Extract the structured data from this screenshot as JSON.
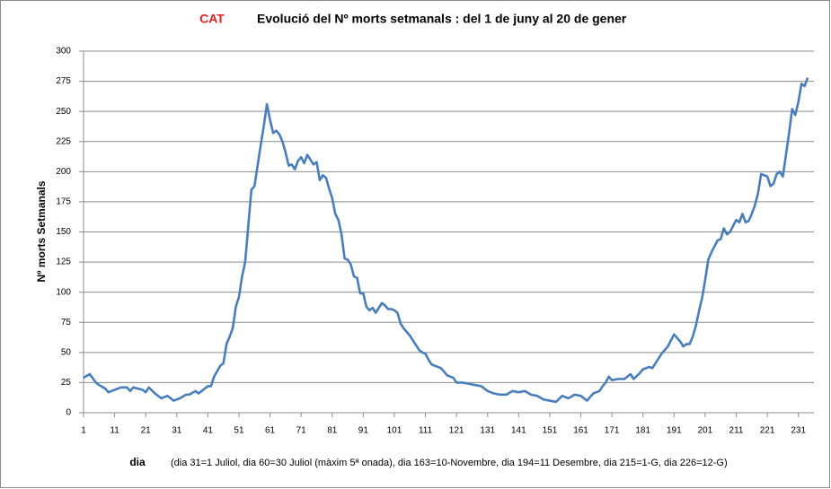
{
  "chart_data": {
    "type": "line",
    "title": "CAT",
    "subtitle": "Evolució  del  Nº morts setmanals  :  del  1 de juny  al  20 de gener",
    "y_label": "Nº morts Setmanals",
    "x_label": "dia",
    "annotation": "(dia 31=1 Juliol,  dia 60=30 Juliol (màxim 5ª onada),  dia 163=10-Novembre,  dia 194=11 Desembre,  dia 215=1-G,  dia 226=12-G)",
    "color": "#4a7ebb",
    "grid": true,
    "xlim": [
      1,
      236
    ],
    "xticks": [
      1,
      11,
      21,
      31,
      41,
      51,
      61,
      71,
      81,
      91,
      101,
      111,
      121,
      131,
      141,
      151,
      161,
      171,
      181,
      191,
      201,
      211,
      221,
      231
    ],
    "ylim": [
      0,
      300
    ],
    "yticks": [
      0,
      25,
      50,
      75,
      100,
      125,
      150,
      175,
      200,
      225,
      250,
      275,
      300
    ],
    "x": [
      1,
      3,
      5,
      6,
      8,
      9,
      11,
      13,
      15,
      16,
      17,
      20,
      21,
      22,
      24,
      26,
      28,
      30,
      32,
      34,
      35,
      37,
      38,
      40,
      41,
      42,
      43,
      45,
      46,
      47,
      48,
      49,
      50,
      51,
      52,
      53,
      54,
      55,
      56,
      57,
      58,
      59,
      60,
      61,
      62,
      63,
      64,
      65,
      66,
      67,
      68,
      69,
      70,
      71,
      72,
      73,
      74,
      75,
      76,
      77,
      78,
      79,
      80,
      81,
      82,
      83,
      84,
      85,
      86,
      87,
      88,
      89,
      90,
      91,
      92,
      93,
      94,
      95,
      96,
      97,
      98,
      99,
      100,
      101,
      102,
      103,
      104,
      105,
      106,
      107,
      108,
      109,
      110,
      111,
      112,
      113,
      114,
      115,
      116,
      117,
      118,
      119,
      120,
      121,
      123,
      125,
      127,
      129,
      131,
      133,
      135,
      137,
      139,
      141,
      143,
      145,
      147,
      149,
      151,
      153,
      155,
      157,
      159,
      161,
      163,
      165,
      167,
      168,
      169,
      170,
      171,
      173,
      175,
      177,
      178,
      180,
      181,
      183,
      184,
      186,
      187,
      189,
      190,
      191,
      193,
      194,
      195,
      196,
      197,
      198,
      199,
      200,
      201,
      202,
      203,
      204,
      205,
      206,
      207,
      208,
      209,
      210,
      211,
      212,
      213,
      214,
      215,
      216,
      217,
      218,
      219,
      220,
      221,
      222,
      223,
      224,
      225,
      226,
      227,
      228,
      229,
      230,
      231,
      232,
      233,
      234
    ],
    "values": [
      29,
      32,
      25,
      23,
      20,
      17,
      19,
      21,
      21,
      18,
      21,
      19,
      17,
      21,
      16,
      12,
      14,
      10,
      12,
      15,
      15,
      18,
      16,
      20,
      22,
      22,
      30,
      39,
      41,
      57,
      63,
      70,
      88,
      96,
      113,
      125,
      155,
      185,
      188,
      205,
      222,
      238,
      256,
      243,
      232,
      234,
      231,
      225,
      216,
      205,
      206,
      202,
      209,
      212,
      207,
      214,
      210,
      206,
      208,
      193,
      197,
      195,
      186,
      178,
      165,
      160,
      148,
      128,
      127,
      123,
      113,
      112,
      99,
      99,
      88,
      85,
      87,
      83,
      87,
      91,
      89,
      86,
      86,
      85,
      83,
      74,
      70,
      67,
      64,
      60,
      56,
      52,
      50,
      49,
      44,
      40,
      39,
      38,
      37,
      34,
      31,
      30,
      29,
      25,
      25,
      24,
      23,
      22,
      18,
      16,
      15,
      15,
      18,
      17,
      18,
      15,
      14,
      11,
      10,
      9,
      14,
      12,
      15,
      14,
      10,
      16,
      18,
      22,
      25,
      30,
      27,
      28,
      28,
      32,
      28,
      33,
      36,
      38,
      37,
      45,
      49,
      55,
      60,
      65,
      59,
      55,
      57,
      57,
      63,
      72,
      84,
      95,
      110,
      127,
      133,
      138,
      143,
      144,
      153,
      148,
      150,
      155,
      160,
      158,
      165,
      158,
      159,
      165,
      172,
      182,
      198,
      197,
      196,
      188,
      190,
      198,
      200,
      196,
      214,
      232,
      252,
      247,
      258,
      273,
      271,
      278
    ]
  }
}
